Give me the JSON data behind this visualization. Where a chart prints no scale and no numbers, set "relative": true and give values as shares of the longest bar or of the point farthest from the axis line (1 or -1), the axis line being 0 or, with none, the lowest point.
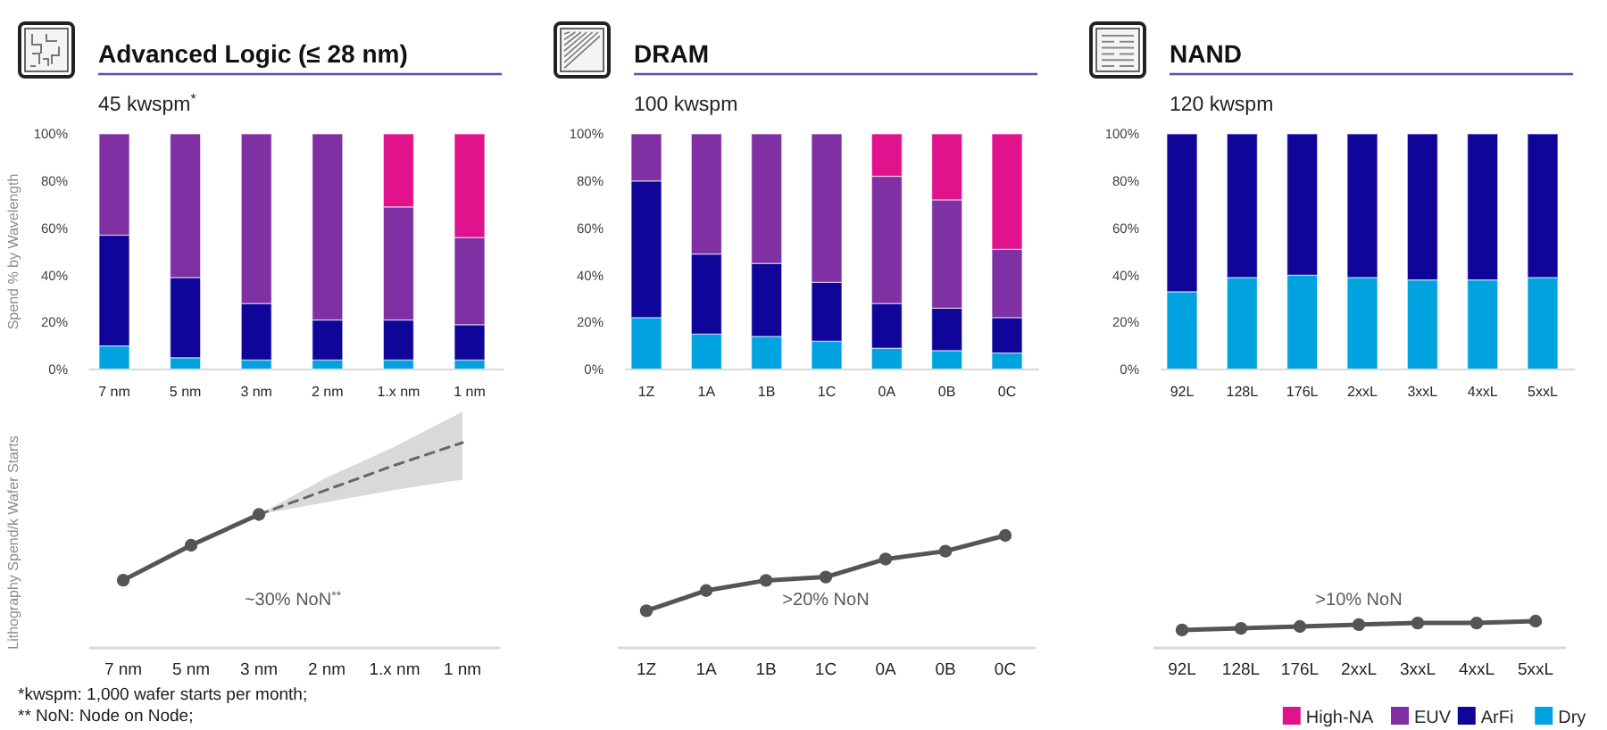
{
  "chart_data": [
    {
      "type": "bar",
      "stacked": true,
      "title": "Advanced Logic (≤ 28 nm)",
      "subtitle": "45 kwspm$^{*}$",
      "ylabel": "Spend % by Wavelength",
      "categories": [
        "7 nm",
        "5 nm",
        "3 nm",
        "2 nm",
        "1.x nm",
        "1 nm"
      ],
      "series": [
        {
          "name": "Dry",
          "color": "#00a3df",
          "values": [
            10,
            5,
            4,
            4,
            4,
            4
          ]
        },
        {
          "name": "ArFi",
          "color": "#0f0599",
          "values": [
            47,
            34,
            24,
            17,
            17,
            15
          ]
        },
        {
          "name": "EUV",
          "color": "#7f30a2",
          "values": [
            43,
            61,
            72,
            79,
            48,
            37
          ]
        },
        {
          "name": "High-NA",
          "color": "#e0138c",
          "values": [
            null,
            null,
            null,
            null,
            31,
            44
          ]
        }
      ],
      "ylim": [
        0,
        100
      ],
      "yticks": [
        {
          "value": 0,
          "label": "0%"
        },
        {
          "value": 20,
          "label": "20%"
        },
        {
          "value": 40,
          "label": "40%"
        },
        {
          "value": 60,
          "label": "60%"
        },
        {
          "value": 80,
          "label": "80%"
        },
        {
          "value": 100,
          "label": "100%"
        }
      ],
      "legend": "bottom right"
    },
    {
      "type": "bar",
      "stacked": true,
      "title": "DRAM",
      "subtitle": "100 kwspm",
      "categories": [
        "1Z",
        "1A",
        "1B",
        "1C",
        "0A",
        "0B",
        "0C"
      ],
      "series": [
        {
          "name": "Dry",
          "color": "#00a3df",
          "values": [
            22,
            15,
            14,
            12,
            9,
            8,
            7
          ]
        },
        {
          "name": "ArFi",
          "color": "#0f0599",
          "values": [
            58,
            34,
            31,
            25,
            19,
            18,
            15
          ]
        },
        {
          "name": "EUV",
          "color": "#7f30a2",
          "values": [
            20,
            51,
            55,
            63,
            54,
            46,
            29
          ]
        },
        {
          "name": "High-NA",
          "color": "#e0138c",
          "values": [
            null,
            null,
            null,
            null,
            18,
            28,
            49
          ]
        }
      ],
      "ylim": [
        0,
        100
      ],
      "yticks": [
        {
          "value": 0,
          "label": "0%"
        },
        {
          "value": 20,
          "label": "20%"
        },
        {
          "value": 40,
          "label": "40%"
        },
        {
          "value": 60,
          "label": "60%"
        },
        {
          "value": 80,
          "label": "80%"
        },
        {
          "value": 100,
          "label": "100%"
        }
      ]
    },
    {
      "type": "bar",
      "stacked": true,
      "title": "NAND",
      "subtitle": "120 kwspm",
      "categories": [
        "92L",
        "128L",
        "176L",
        "2xxL",
        "3xxL",
        "4xxL",
        "5xxL"
      ],
      "series": [
        {
          "name": "Dry",
          "color": "#00a3df",
          "values": [
            33,
            39,
            40,
            39,
            38,
            38,
            39
          ]
        },
        {
          "name": "ArFi",
          "color": "#0f0599",
          "values": [
            67,
            61,
            60,
            61,
            62,
            62,
            61
          ]
        }
      ],
      "ylim": [
        0,
        100
      ],
      "yticks": [
        {
          "value": 0,
          "label": "0%"
        },
        {
          "value": 20,
          "label": "20%"
        },
        {
          "value": 40,
          "label": "40%"
        },
        {
          "value": 60,
          "label": "60%"
        },
        {
          "value": 80,
          "label": "80%"
        },
        {
          "value": 100,
          "label": "100%"
        }
      ]
    },
    {
      "type": "line",
      "relative": true,
      "ylabel": "Lithography Spend/k Wafer Starts",
      "categories": [
        "7 nm",
        "5 nm",
        "3 nm",
        "2 nm",
        "1.x nm",
        "1 nm"
      ],
      "marker": "circle",
      "line_style": "solid",
      "series": [
        {
          "color": "#555555",
          "values": [
            0.33,
            0.5,
            0.65,
            null,
            null,
            null
          ]
        },
        {
          "color": "#666666",
          "line_style": "dashed",
          "marker": "none",
          "values": [
            null,
            null,
            0.65,
            0.77,
            0.89,
            1
          ],
          "lower": [
            null,
            null,
            0.65,
            0.71,
            0.77,
            0.82
          ],
          "upper": [
            null,
            null,
            0.65,
            0.83,
            0.98,
            1.15
          ]
        }
      ],
      "annotations": [
        "~30% NoN$^{**}$",
        "*kwspm: 1,000 wafer starts per month;",
        "** NoN: Node on Node;"
      ]
    },
    {
      "type": "line",
      "relative": true,
      "categories": [
        "1Z",
        "1A",
        "1B",
        "1C",
        "0A",
        "0B",
        "0C"
      ],
      "marker": "circle",
      "line_style": "solid",
      "color": "#555555",
      "values": [
        0.33,
        0.51,
        0.6,
        0.63,
        0.79,
        0.86,
        1
      ],
      "annotations": [
        ">20% NoN"
      ]
    },
    {
      "type": "line",
      "relative": true,
      "categories": [
        "92L",
        "128L",
        "176L",
        "2xxL",
        "3xxL",
        "4xxL",
        "5xxL"
      ],
      "marker": "circle",
      "line_style": "solid",
      "color": "#555555",
      "values": [
        0.67,
        0.73,
        0.8,
        0.87,
        0.93,
        0.93,
        1
      ],
      "annotations": [
        ">10% NoN"
      ]
    }
  ]
}
